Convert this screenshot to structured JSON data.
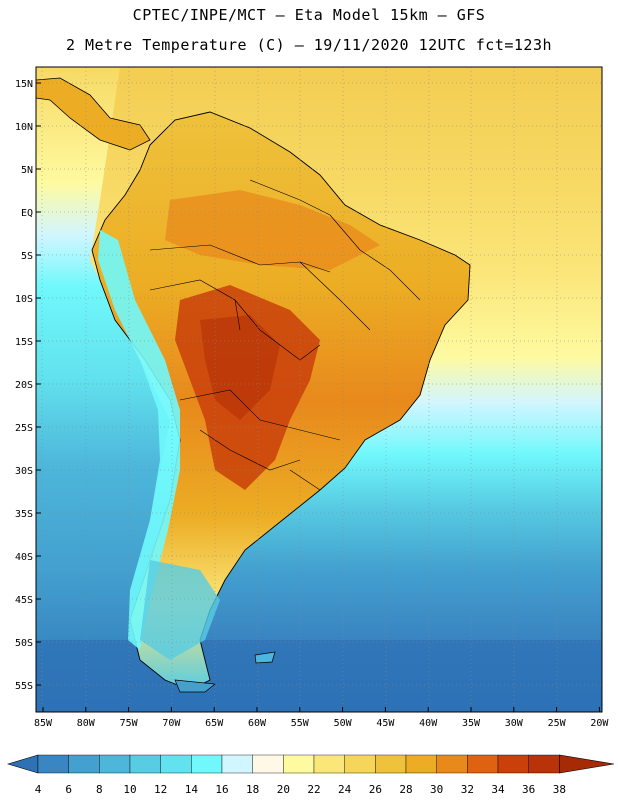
{
  "header": {
    "line1": "CPTEC/INPE/MCT –  Eta Model 15km – GFS",
    "line2": "2 Metre Temperature (C) – 19/11/2020 12UTC fct=123h"
  },
  "axes": {
    "lat_labels": [
      "15N",
      "10N",
      "5N",
      "EQ",
      "5S",
      "10S",
      "15S",
      "20S",
      "25S",
      "30S",
      "35S",
      "40S",
      "45S",
      "50S",
      "55S"
    ],
    "lon_labels": [
      "85W",
      "80W",
      "75W",
      "70W",
      "65W",
      "60W",
      "55W",
      "50W",
      "45W",
      "40W",
      "35W",
      "30W",
      "25W",
      "20W"
    ]
  },
  "colorbar": {
    "labels": [
      "4",
      "6",
      "8",
      "10",
      "12",
      "14",
      "16",
      "18",
      "20",
      "22",
      "24",
      "26",
      "28",
      "30",
      "32",
      "34",
      "36",
      "38"
    ],
    "colors": [
      "#2d72b5",
      "#3a86c2",
      "#43a0cf",
      "#4db6da",
      "#58cce3",
      "#62e2ee",
      "#70f8fc",
      "#d2f6ff",
      "#fff8e6",
      "#fefaa0",
      "#fbe67a",
      "#f6d65a",
      "#efc23c",
      "#ecad24",
      "#e8891c",
      "#df6212",
      "#c9400a",
      "#b83408",
      "#a52a05"
    ]
  },
  "legend": {
    "warm_color": "#e8891c",
    "hot_color": "#c9400a",
    "ocean_warm": "#f6d65a",
    "ocean_cold": "#2d72b5"
  }
}
